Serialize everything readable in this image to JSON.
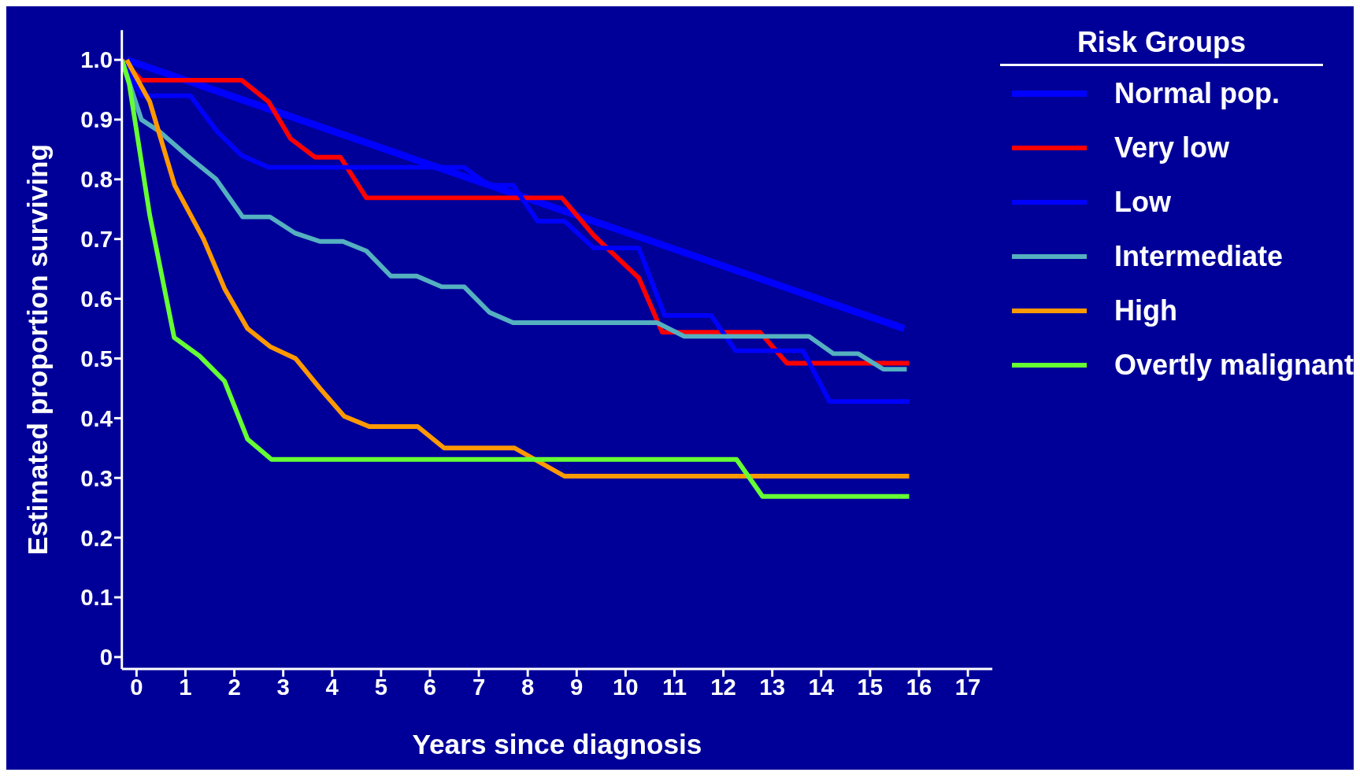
{
  "chart_data": {
    "type": "line",
    "xlabel": "Years since diagnosis",
    "ylabel": "Estimated proportion surviving",
    "legend_title": "Risk Groups",
    "legend": "top right",
    "grid": false,
    "marker": "none",
    "line_style": "solid",
    "xlim": [
      -0.3,
      17.5
    ],
    "xticks": [
      0,
      1,
      2,
      3,
      4,
      5,
      6,
      7,
      8,
      9,
      10,
      11,
      12,
      13,
      14,
      15,
      16,
      17
    ],
    "ylim": [
      -0.02,
      1.05
    ],
    "yticks": [
      0,
      {
        "value": 0.1,
        "label": "0.1"
      },
      {
        "value": 0.2,
        "label": "0.2"
      },
      {
        "value": 0.3,
        "label": "0.3"
      },
      {
        "value": 0.4,
        "label": "0.4"
      },
      {
        "value": 0.5,
        "label": "0.5"
      },
      {
        "value": 0.6,
        "label": "0.6"
      },
      {
        "value": 0.7,
        "label": "0.7"
      },
      {
        "value": 0.8,
        "label": "0.8"
      },
      {
        "value": 0.9,
        "label": "0.9"
      },
      {
        "value": 1,
        "label": "1.0"
      }
    ],
    "series": [
      {
        "name": "Normal pop.",
        "color": "#0000ff",
        "x": [
          -0.2,
          15.7
        ],
        "values": [
          1.0,
          0.55
        ]
      },
      {
        "name": "Very low",
        "color": "#ff0000",
        "x": [
          -0.3,
          0.1,
          2.15,
          2.7,
          3.15,
          3.65,
          4.17,
          4.7,
          8.7,
          9.35,
          10.27,
          10.75,
          12.75,
          13.3,
          15.8
        ],
        "values": [
          1.0,
          0.966,
          0.966,
          0.93,
          0.868,
          0.837,
          0.837,
          0.769,
          0.769,
          0.706,
          0.635,
          0.544,
          0.544,
          0.492,
          0.492
        ]
      },
      {
        "name": "Low",
        "color": "#0000ff",
        "x": [
          -0.3,
          0.1,
          1.1,
          1.65,
          2.15,
          2.7,
          6.7,
          7.2,
          7.7,
          8.2,
          8.75,
          9.35,
          10.27,
          10.8,
          11.75,
          12.25,
          13.63,
          14.17,
          15.8
        ],
        "values": [
          1.0,
          0.94,
          0.94,
          0.88,
          0.84,
          0.82,
          0.82,
          0.79,
          0.79,
          0.73,
          0.73,
          0.685,
          0.685,
          0.572,
          0.572,
          0.513,
          0.513,
          0.428,
          0.428
        ]
      },
      {
        "name": "Intermediate",
        "color": "#55b0c0",
        "x": [
          -0.3,
          0.1,
          0.47,
          1.03,
          1.63,
          2.17,
          2.73,
          3.24,
          3.75,
          4.22,
          4.7,
          5.2,
          5.73,
          6.24,
          6.7,
          7.22,
          7.7,
          10.64,
          11.2,
          13.75,
          14.25,
          14.76,
          15.27,
          15.75
        ],
        "values": [
          1.0,
          0.9,
          0.88,
          0.84,
          0.8,
          0.737,
          0.737,
          0.71,
          0.696,
          0.696,
          0.68,
          0.638,
          0.638,
          0.62,
          0.62,
          0.577,
          0.56,
          0.56,
          0.537,
          0.537,
          0.508,
          0.508,
          0.482,
          0.482
        ]
      },
      {
        "name": "High",
        "color": "#ff9900",
        "x": [
          -0.2,
          0.27,
          0.78,
          1.37,
          1.8,
          2.27,
          2.73,
          3.25,
          3.75,
          4.25,
          4.76,
          5.75,
          6.29,
          7.73,
          8.75,
          15.8
        ],
        "values": [
          1.0,
          0.93,
          0.79,
          0.7,
          0.617,
          0.55,
          0.52,
          0.5,
          0.45,
          0.403,
          0.386,
          0.386,
          0.35,
          0.35,
          0.303,
          0.303
        ]
      },
      {
        "name": "Overtly malignant",
        "color": "#66ff33",
        "x": [
          -0.3,
          -0.15,
          0.27,
          0.77,
          1.29,
          1.8,
          2.27,
          2.76,
          12.27,
          12.8,
          15.8
        ],
        "values": [
          1.0,
          0.96,
          0.74,
          0.535,
          0.504,
          0.462,
          0.365,
          0.331,
          0.331,
          0.269,
          0.269
        ]
      }
    ]
  }
}
